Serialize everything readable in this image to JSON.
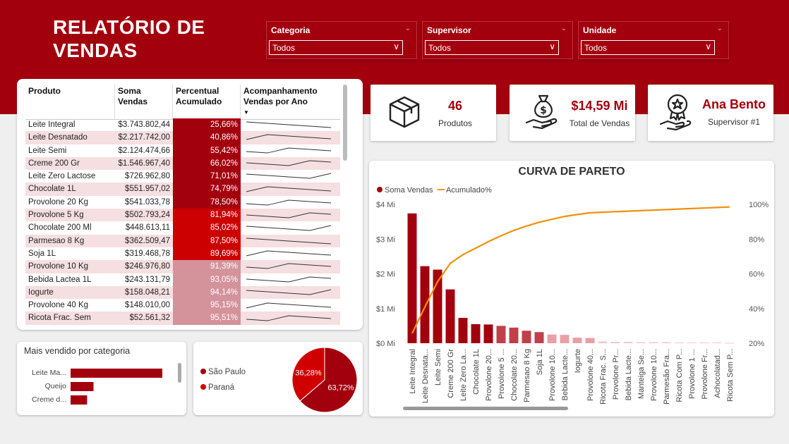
{
  "header": {
    "title": "RELATÓRIO DE VENDAS"
  },
  "slicers": [
    {
      "label": "Categoria",
      "value": "Todos"
    },
    {
      "label": "Supervisor",
      "value": "Todos"
    },
    {
      "label": "Unidade",
      "value": "Todos"
    }
  ],
  "table": {
    "headers": [
      "Produto",
      "Soma Vendas",
      "Percentual Acumulado",
      "Acompanhamento Vendas por Ano"
    ],
    "rows": [
      {
        "produto": "Leite Integral",
        "vendas": "$3.743.802,44",
        "pct": "25,66%",
        "color": "#a3000e"
      },
      {
        "produto": "Leite Desnatado",
        "vendas": "$2.217.742,00",
        "pct": "40,86%",
        "color": "#a3000e"
      },
      {
        "produto": "Leite Semi",
        "vendas": "$2.124.474,66",
        "pct": "55,42%",
        "color": "#a3000e"
      },
      {
        "produto": "Creme 200 Gr",
        "vendas": "$1.546.967,40",
        "pct": "66,02%",
        "color": "#a3000e"
      },
      {
        "produto": "Leite Zero Lactose",
        "vendas": "$726.962,80",
        "pct": "71,01%",
        "color": "#a3000e"
      },
      {
        "produto": "Chocolate 1L",
        "vendas": "$551.957,02",
        "pct": "74,79%",
        "color": "#a3000e"
      },
      {
        "produto": "Provolone 20 Kg",
        "vendas": "$541.033,78",
        "pct": "78,50%",
        "color": "#a3000e"
      },
      {
        "produto": "Provolone 5 Kg",
        "vendas": "$502.793,24",
        "pct": "81,94%",
        "color": "#cc0000"
      },
      {
        "produto": "Chocolate 200 Ml",
        "vendas": "$448.613,11",
        "pct": "85,02%",
        "color": "#cc0000"
      },
      {
        "produto": "Parmesao 8 Kg",
        "vendas": "$362.509,47",
        "pct": "87,50%",
        "color": "#cc0000"
      },
      {
        "produto": "Soja 1L",
        "vendas": "$319.468,78",
        "pct": "89,69%",
        "color": "#cc0000"
      },
      {
        "produto": "Provolone 10 Kg",
        "vendas": "$246.976,80",
        "pct": "91,39%",
        "color": "#d4929a"
      },
      {
        "produto": "Bebida Lactea 1L",
        "vendas": "$243.131,79",
        "pct": "93,05%",
        "color": "#d4929a"
      },
      {
        "produto": "Iogurte",
        "vendas": "$158.048,21",
        "pct": "94,14%",
        "color": "#d4929a"
      },
      {
        "produto": "Provolone 40 Kg",
        "vendas": "$148.010,00",
        "pct": "95,15%",
        "color": "#d4929a"
      },
      {
        "produto": "Ricota Frac. Sem",
        "vendas": "$52.561,32",
        "pct": "95,51%",
        "color": "#d4929a"
      }
    ]
  },
  "kpis": {
    "produtos": {
      "value": "46",
      "label": "Produtos"
    },
    "vendas": {
      "value": "$14,59 Mi",
      "label": "Total de Vendas"
    },
    "supervisor": {
      "value": "Ana Bento",
      "label": "Supervisor #1"
    }
  },
  "chart_data": {
    "type": "bar",
    "title": "CURVA DE PARETO",
    "legend": [
      "Soma Vendas",
      "Acumulado%"
    ],
    "y_ticks": [
      "$0 Mi",
      "$1 Mi",
      "$2 Mi",
      "$3 Mi",
      "$4 Mi"
    ],
    "y2_ticks": [
      "20%",
      "40%",
      "60%",
      "80%",
      "100%"
    ],
    "ylim": [
      0,
      4
    ],
    "y2lim": [
      20,
      100
    ],
    "categories": [
      "Leite Integral",
      "Leite Desnata...",
      "Leite Semi",
      "Creme 200 Gr",
      "Leite Zero La...",
      "Chocolate 1L",
      "Provolone 20...",
      "Provolone 5 ...",
      "Chocolate 20...",
      "Parmesao 8 Kg",
      "Soja 1L",
      "Provolone 10...",
      "Bebida Lacte...",
      "Iogurte",
      "Provolone 40...",
      "Ricota Frac. S...",
      "Provolone Pr...",
      "Bebida Lacte...",
      "Manteiga Se...",
      "Provolone 10...",
      "Parmesão Fra...",
      "Ricota Com P...",
      "Provolone 1 ...",
      "Provolone Fr...",
      "Achocolatad...",
      "Ricota Sem P..."
    ],
    "series": [
      {
        "name": "Soma Vendas",
        "values": [
          3.74,
          2.22,
          2.12,
          1.55,
          0.73,
          0.55,
          0.54,
          0.5,
          0.45,
          0.36,
          0.32,
          0.25,
          0.24,
          0.16,
          0.15,
          0.05,
          0.04,
          0.04,
          0.03,
          0.03,
          0.03,
          0.02,
          0.02,
          0.02,
          0.02,
          0.01
        ]
      },
      {
        "name": "Acumulado%",
        "values": [
          25.66,
          40.86,
          55.42,
          66.02,
          71.01,
          74.79,
          78.5,
          81.94,
          85.02,
          87.5,
          89.69,
          91.39,
          93.05,
          94.14,
          95.15,
          95.51,
          95.8,
          96.1,
          96.4,
          96.7,
          97.0,
          97.3,
          97.6,
          97.9,
          98.2,
          98.5
        ]
      }
    ],
    "bar_colors": [
      "#a3000e",
      "#a3000e",
      "#a3000e",
      "#a3000e",
      "#a3000e",
      "#a3000e",
      "#a3000e",
      "#c0404a",
      "#c0404a",
      "#c0404a",
      "#c0404a",
      "#e8a0a5",
      "#e8a0a5",
      "#e8a0a5",
      "#e8a0a5",
      "#f2c8cb",
      "#f2c8cb",
      "#f2c8cb",
      "#f2c8cb",
      "#f2c8cb",
      "#f2c8cb",
      "#f2c8cb",
      "#f2c8cb",
      "#f2c8cb",
      "#f2c8cb",
      "#f2c8cb"
    ],
    "line_color": "#f0900c"
  },
  "categoria": {
    "title": "Mais vendido por categoria",
    "items": [
      {
        "label": "Leite Ma...",
        "value": 100
      },
      {
        "label": "Queijo",
        "value": 25
      },
      {
        "label": "Creme d...",
        "value": 18
      }
    ]
  },
  "pie": {
    "legend": [
      {
        "label": "São Paulo",
        "color": "#a3000e",
        "value": 63.72,
        "text": "63,72%"
      },
      {
        "label": "Paraná",
        "color": "#d00000",
        "value": 36.28,
        "text": "36,28%"
      }
    ]
  }
}
